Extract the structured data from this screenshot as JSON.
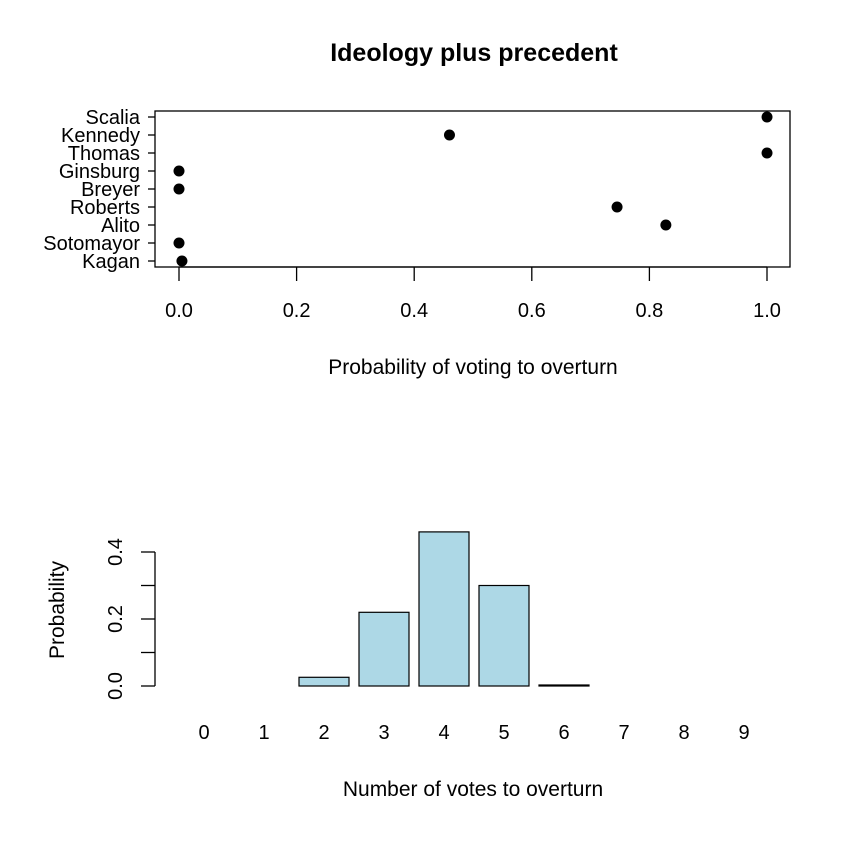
{
  "chart_data": [
    {
      "type": "scatter",
      "title": "Ideology plus precedent",
      "xlabel": "Probability of voting to overturn",
      "ylabel": "",
      "xlim": [
        0,
        1
      ],
      "xticks": [
        "0.0",
        "0.2",
        "0.4",
        "0.6",
        "0.8",
        "1.0"
      ],
      "categories": [
        "Scalia",
        "Kennedy",
        "Thomas",
        "Ginsburg",
        "Breyer",
        "Roberts",
        "Alito",
        "Sotomayor",
        "Kagan"
      ],
      "values": [
        1.0,
        0.46,
        1.0,
        0.0,
        0.0,
        0.745,
        0.828,
        0.0,
        0.005
      ],
      "grid": false,
      "point_color": "#000000"
    },
    {
      "type": "bar",
      "title": "",
      "xlabel": "Number of votes to overturn",
      "ylabel": "Probability",
      "ylim": [
        0,
        0.45
      ],
      "yticks": [
        "0.0",
        "0.2",
        "0.4"
      ],
      "categories": [
        "0",
        "1",
        "2",
        "3",
        "4",
        "5",
        "6",
        "7",
        "8",
        "9"
      ],
      "values": [
        0.0,
        0.0,
        0.026,
        0.22,
        0.46,
        0.3,
        0.003,
        0.0,
        0.0,
        0.0
      ],
      "grid": false,
      "bar_color": "#add8e6"
    }
  ]
}
